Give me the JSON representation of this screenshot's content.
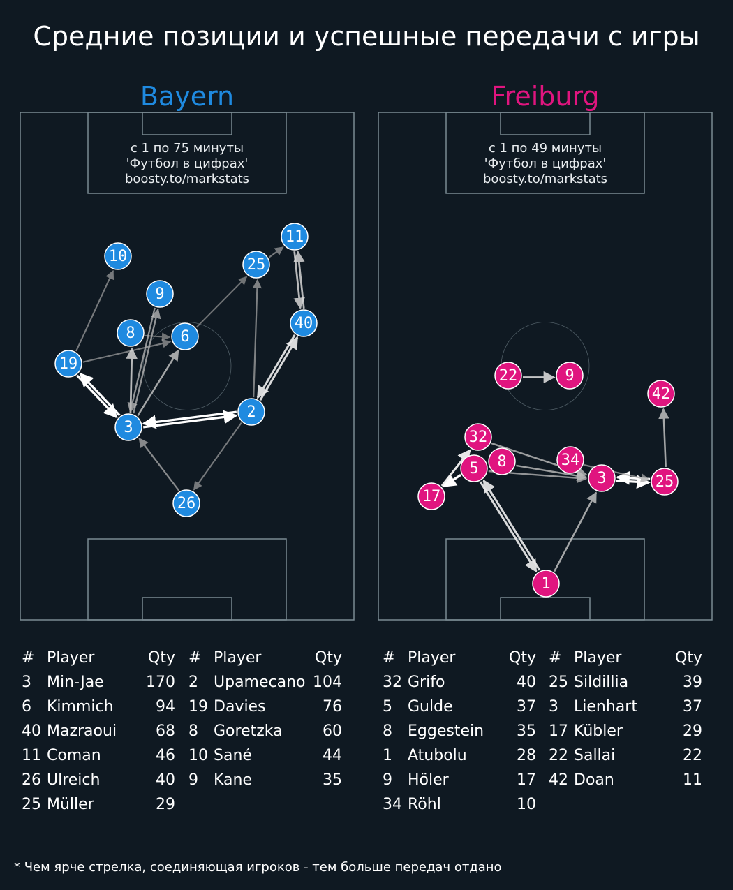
{
  "title": "Средние позиции и успешные передачи с игры",
  "footnote": "* Чем ярче стрелка, соединяющая игроков - тем больше передач отдано",
  "colors": {
    "background": "#0f1922",
    "pitch_lines": "#7a8a92",
    "bayern": "#1f8ae0",
    "freiburg": "#e0157f"
  },
  "teams": [
    {
      "name": "Bayern",
      "info": [
        "с 1 по 75 минуты",
        "'Футбол в цифрах'",
        "boosty.to/markstats"
      ],
      "table_headers": [
        "#",
        "Player",
        "Qty"
      ],
      "players_left": [
        {
          "num": "3",
          "name": "Min-Jae",
          "qty": "170"
        },
        {
          "num": "6",
          "name": "Kimmich",
          "qty": "94"
        },
        {
          "num": "40",
          "name": "Mazraoui",
          "qty": "68"
        },
        {
          "num": "11",
          "name": "Coman",
          "qty": "46"
        },
        {
          "num": "26",
          "name": "Ulreich",
          "qty": "40"
        },
        {
          "num": "25",
          "name": "Müller",
          "qty": "29"
        }
      ],
      "players_right": [
        {
          "num": "2",
          "name": "Upamecano",
          "qty": "104"
        },
        {
          "num": "19",
          "name": "Davies",
          "qty": "76"
        },
        {
          "num": "8",
          "name": "Goretzka",
          "qty": "60"
        },
        {
          "num": "10",
          "name": "Sané",
          "qty": "44"
        },
        {
          "num": "9",
          "name": "Kane",
          "qty": "35"
        }
      ],
      "nodes": [
        {
          "num": "10"
        },
        {
          "num": "9"
        },
        {
          "num": "8"
        },
        {
          "num": "6"
        },
        {
          "num": "19"
        },
        {
          "num": "3"
        },
        {
          "num": "26"
        },
        {
          "num": "2"
        },
        {
          "num": "25"
        },
        {
          "num": "11"
        },
        {
          "num": "40"
        }
      ],
      "passes": [
        {
          "from": "19",
          "to": "10",
          "strength": 0.35
        },
        {
          "from": "19",
          "to": "6",
          "strength": 0.35
        },
        {
          "from": "8",
          "to": "6",
          "strength": 0.3
        },
        {
          "from": "3",
          "to": "19",
          "strength": 1.0
        },
        {
          "from": "19",
          "to": "3",
          "strength": 1.0
        },
        {
          "from": "3",
          "to": "2",
          "strength": 1.0
        },
        {
          "from": "2",
          "to": "3",
          "strength": 1.0
        },
        {
          "from": "3",
          "to": "8",
          "strength": 0.7
        },
        {
          "from": "3",
          "to": "6",
          "strength": 0.6
        },
        {
          "from": "3",
          "to": "9",
          "strength": 0.5
        },
        {
          "from": "9",
          "to": "3",
          "strength": 0.5
        },
        {
          "from": "26",
          "to": "3",
          "strength": 0.45
        },
        {
          "from": "2",
          "to": "26",
          "strength": 0.35
        },
        {
          "from": "2",
          "to": "25",
          "strength": 0.4
        },
        {
          "from": "2",
          "to": "40",
          "strength": 0.85
        },
        {
          "from": "40",
          "to": "2",
          "strength": 0.85
        },
        {
          "from": "6",
          "to": "25",
          "strength": 0.3
        },
        {
          "from": "25",
          "to": "11",
          "strength": 0.35
        },
        {
          "from": "11",
          "to": "40",
          "strength": 0.7
        },
        {
          "from": "40",
          "to": "11",
          "strength": 0.7
        }
      ]
    },
    {
      "name": "Freiburg",
      "info": [
        "с 1 по 49 минуты",
        "'Футбол в цифрах'",
        "boosty.to/markstats"
      ],
      "table_headers": [
        "#",
        "Player",
        "Qty"
      ],
      "players_left": [
        {
          "num": "32",
          "name": "Grifo",
          "qty": "40"
        },
        {
          "num": "5",
          "name": "Gulde",
          "qty": "37"
        },
        {
          "num": "8",
          "name": "Eggestein",
          "qty": "35"
        },
        {
          "num": "1",
          "name": "Atubolu",
          "qty": "28"
        },
        {
          "num": "9",
          "name": "Höler",
          "qty": "17"
        },
        {
          "num": "34",
          "name": "Röhl",
          "qty": "10"
        }
      ],
      "players_right": [
        {
          "num": "25",
          "name": "Sildillia",
          "qty": "39"
        },
        {
          "num": "3",
          "name": "Lienhart",
          "qty": "37"
        },
        {
          "num": "17",
          "name": "Kübler",
          "qty": "29"
        },
        {
          "num": "22",
          "name": "Sallai",
          "qty": "22"
        },
        {
          "num": "42",
          "name": "Doan",
          "qty": "11"
        }
      ],
      "nodes": [
        {
          "num": "22"
        },
        {
          "num": "9"
        },
        {
          "num": "42"
        },
        {
          "num": "32"
        },
        {
          "num": "8"
        },
        {
          "num": "34"
        },
        {
          "num": "5"
        },
        {
          "num": "3"
        },
        {
          "num": "25"
        },
        {
          "num": "17"
        },
        {
          "num": "1"
        }
      ],
      "passes": [
        {
          "from": "22",
          "to": "9",
          "strength": 0.75
        },
        {
          "from": "25",
          "to": "42",
          "strength": 0.6
        },
        {
          "from": "32",
          "to": "3",
          "strength": 0.55
        },
        {
          "from": "8",
          "to": "3",
          "strength": 0.55
        },
        {
          "from": "5",
          "to": "3",
          "strength": 0.5
        },
        {
          "from": "3",
          "to": "25",
          "strength": 1.0
        },
        {
          "from": "25",
          "to": "3",
          "strength": 1.0
        },
        {
          "from": "5",
          "to": "17",
          "strength": 1.0
        },
        {
          "from": "17",
          "to": "32",
          "strength": 0.9
        },
        {
          "from": "1",
          "to": "5",
          "strength": 0.85
        },
        {
          "from": "5",
          "to": "1",
          "strength": 0.85
        },
        {
          "from": "1",
          "to": "3",
          "strength": 0.6
        },
        {
          "from": "34",
          "to": "25",
          "strength": 0.4
        }
      ]
    }
  ]
}
